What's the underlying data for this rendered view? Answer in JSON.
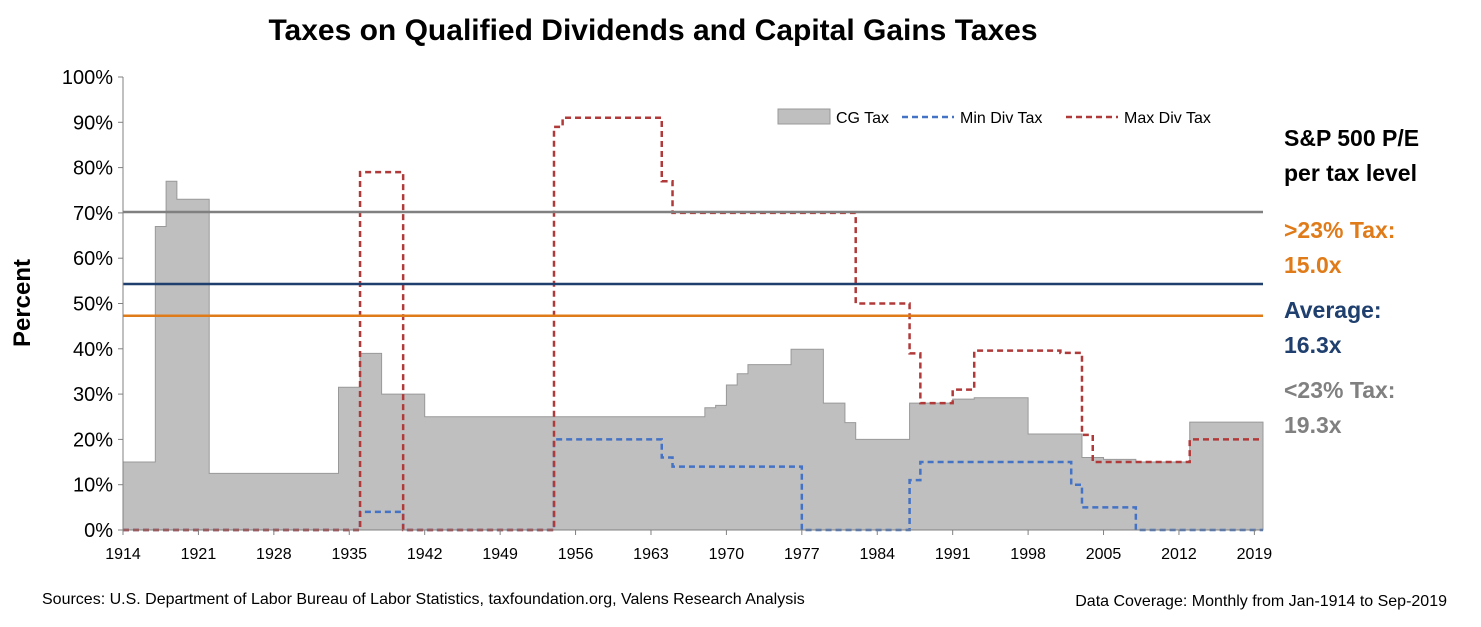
{
  "chart_data": {
    "type": "area",
    "title": "Taxes on Qualified Dividends and Capital Gains Taxes",
    "ylabel": "Percent",
    "xlabel": "",
    "xlim": [
      1914,
      2019.8
    ],
    "ylim": [
      0,
      100
    ],
    "y_ticks": [
      "0%",
      "10%",
      "20%",
      "30%",
      "40%",
      "50%",
      "60%",
      "70%",
      "80%",
      "90%",
      "100%"
    ],
    "x_ticks": [
      1914,
      1921,
      1928,
      1935,
      1942,
      1949,
      1956,
      1963,
      1970,
      1977,
      1984,
      1991,
      1998,
      2005,
      2012,
      2019
    ],
    "grid": false,
    "legend_position": "top-right",
    "legend": [
      "CG Tax",
      "Min Div Tax",
      "Max Div Tax"
    ],
    "series": [
      {
        "name": "CG Tax",
        "style": "area",
        "color": "#bfbfbf",
        "edge": "#999999",
        "points": [
          [
            1914,
            15
          ],
          [
            1917,
            15
          ],
          [
            1917,
            67
          ],
          [
            1918,
            67
          ],
          [
            1918,
            77
          ],
          [
            1919,
            77
          ],
          [
            1919,
            73
          ],
          [
            1922,
            73
          ],
          [
            1922,
            12.5
          ],
          [
            1934,
            12.5
          ],
          [
            1934,
            31.5
          ],
          [
            1936,
            31.5
          ],
          [
            1936,
            39
          ],
          [
            1938,
            39
          ],
          [
            1938,
            30
          ],
          [
            1942,
            30
          ],
          [
            1942,
            25
          ],
          [
            1968,
            25
          ],
          [
            1968,
            27
          ],
          [
            1969,
            27
          ],
          [
            1969,
            27.5
          ],
          [
            1970,
            27.5
          ],
          [
            1970,
            32
          ],
          [
            1971,
            32
          ],
          [
            1971,
            34.5
          ],
          [
            1972,
            34.5
          ],
          [
            1972,
            36.5
          ],
          [
            1976,
            36.5
          ],
          [
            1976,
            39.9
          ],
          [
            1979,
            39.9
          ],
          [
            1979,
            28
          ],
          [
            1981,
            28
          ],
          [
            1981,
            23.7
          ],
          [
            1982,
            23.7
          ],
          [
            1982,
            20
          ],
          [
            1987,
            20
          ],
          [
            1987,
            28
          ],
          [
            1991,
            28
          ],
          [
            1991,
            28.9
          ],
          [
            1993,
            28.9
          ],
          [
            1993,
            29.2
          ],
          [
            1998,
            29.2
          ],
          [
            1998,
            21.2
          ],
          [
            2003,
            21.2
          ],
          [
            2003,
            16
          ],
          [
            2005,
            16
          ],
          [
            2005,
            15.6
          ],
          [
            2008,
            15.6
          ],
          [
            2008,
            15
          ],
          [
            2013,
            15
          ],
          [
            2013,
            23.8
          ],
          [
            2019.8,
            23.8
          ]
        ]
      },
      {
        "name": "Min Div Tax",
        "style": "dashed",
        "color": "#4472c4",
        "points": [
          [
            1914,
            0
          ],
          [
            1936,
            0
          ],
          [
            1936,
            4
          ],
          [
            1940,
            4
          ],
          [
            1940,
            0
          ],
          [
            1954,
            0
          ],
          [
            1954,
            20
          ],
          [
            1964,
            20
          ],
          [
            1964,
            16
          ],
          [
            1965,
            16
          ],
          [
            1965,
            14
          ],
          [
            1977,
            14
          ],
          [
            1977,
            0
          ],
          [
            1987,
            0
          ],
          [
            1987,
            11
          ],
          [
            1988,
            11
          ],
          [
            1988,
            15
          ],
          [
            2002,
            15
          ],
          [
            2002,
            10
          ],
          [
            2003,
            10
          ],
          [
            2003,
            5
          ],
          [
            2008,
            5
          ],
          [
            2008,
            0
          ],
          [
            2019.8,
            0
          ]
        ]
      },
      {
        "name": "Max Div Tax",
        "style": "dashed",
        "color": "#b03a3a",
        "points": [
          [
            1914,
            0
          ],
          [
            1936,
            0
          ],
          [
            1936,
            79
          ],
          [
            1940,
            79
          ],
          [
            1940,
            0
          ],
          [
            1954,
            0
          ],
          [
            1954,
            89
          ],
          [
            1954.8,
            89
          ],
          [
            1954.8,
            91
          ],
          [
            1964,
            91
          ],
          [
            1964,
            77
          ],
          [
            1965,
            77
          ],
          [
            1965,
            70
          ],
          [
            1982,
            70
          ],
          [
            1982,
            50
          ],
          [
            1987,
            50
          ],
          [
            1987,
            39
          ],
          [
            1988,
            39
          ],
          [
            1988,
            28
          ],
          [
            1991,
            28
          ],
          [
            1991,
            31
          ],
          [
            1993,
            31
          ],
          [
            1993,
            39.6
          ],
          [
            2001,
            39.6
          ],
          [
            2001,
            39.1
          ],
          [
            2003,
            39.1
          ],
          [
            2003,
            21
          ],
          [
            2004,
            21
          ],
          [
            2004,
            15
          ],
          [
            2013,
            15
          ],
          [
            2013,
            20
          ],
          [
            2019.8,
            20
          ]
        ]
      }
    ],
    "reference_lines": [
      {
        "name": "<23% Tax",
        "y": 70.2,
        "color": "#808080"
      },
      {
        "name": "Average",
        "y": 54.3,
        "color": "#1f3f6e"
      },
      {
        "name": ">23% Tax",
        "y": 47.3,
        "color": "#e07b1a"
      }
    ]
  },
  "side_panel": {
    "heading_line1": "S&P 500 P/E",
    "heading_line2": "per tax level",
    "high_label": ">23% Tax:",
    "high_value": "15.0x",
    "high_color": "#e07b1a",
    "avg_label": "Average:",
    "avg_value": "16.3x",
    "avg_color": "#1f3f6e",
    "low_label": "<23% Tax:",
    "low_value": "19.3x",
    "low_color": "#808080"
  },
  "footer": {
    "sources": "Sources: U.S. Department of Labor Bureau of Labor Statistics, taxfoundation.org, Valens Research Analysis",
    "coverage": "Data Coverage: Monthly from Jan-1914 to Sep-2019"
  }
}
